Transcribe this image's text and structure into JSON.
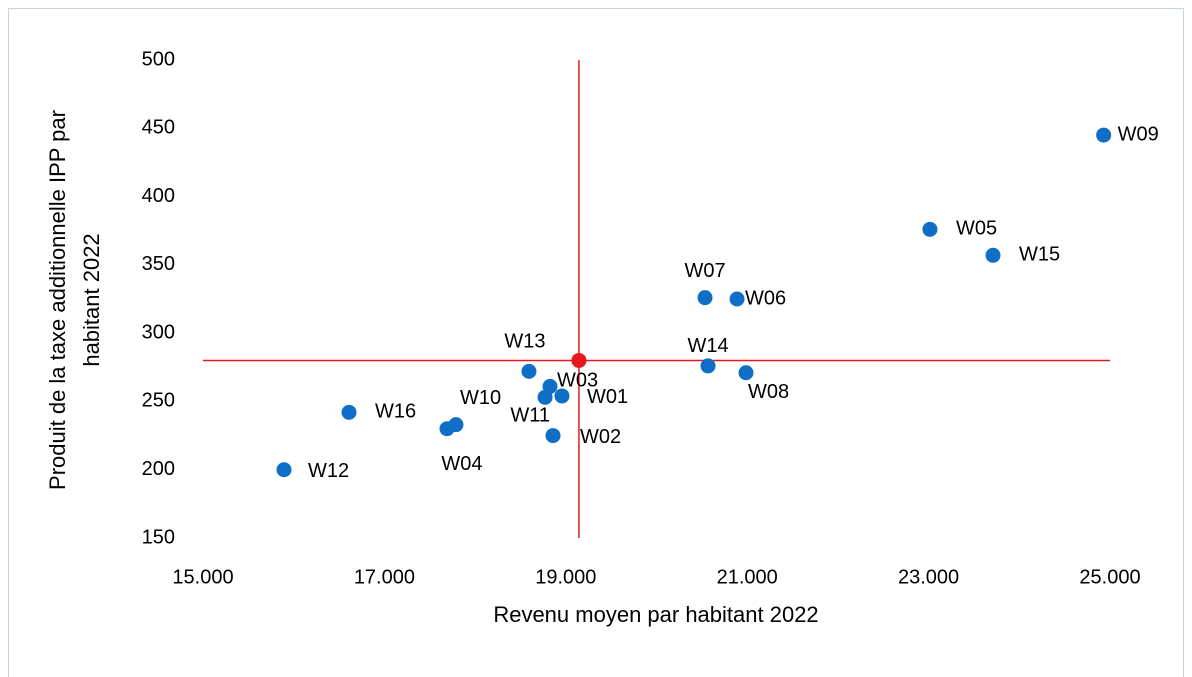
{
  "chart_data": {
    "type": "scatter",
    "x_label": "Revenu moyen par habitant 2022",
    "y_label": "Produit de la taxe additionnelle IPP par habitant 2022",
    "series": [
      {
        "color": "#0f6fc6",
        "labels": [
          "W09",
          "W05",
          "W15",
          "W07",
          "W06",
          "W14",
          "W08",
          "W13",
          "W03",
          "W11",
          "W01",
          "W02",
          "W10",
          "W04",
          "W16",
          "W12"
        ],
        "x": [
          24930,
          23015,
          23710,
          20535,
          20888,
          20568,
          20987,
          18594,
          18826,
          18771,
          18958,
          18859,
          17789,
          17690,
          16610,
          15893
        ],
        "values": [
          445,
          376,
          357,
          326,
          325,
          276,
          271,
          272,
          261,
          253,
          254,
          225,
          233,
          230,
          242,
          200
        ]
      }
    ],
    "mean_point": {
      "x": 19145,
      "y": 280,
      "color": "#e8191c"
    },
    "xlim": [
      15000,
      25000
    ],
    "xticks": [
      {
        "value": 15000,
        "label": "15.000"
      },
      {
        "value": 17000,
        "label": "17.000"
      },
      {
        "value": 19000,
        "label": "19.000"
      },
      {
        "value": 21000,
        "label": "21.000"
      },
      {
        "value": 23000,
        "label": "23.000"
      },
      {
        "value": 25000,
        "label": "25.000"
      }
    ],
    "ylim": [
      150,
      500
    ],
    "yticks": [
      150,
      200,
      250,
      300,
      350,
      400,
      450,
      500
    ]
  }
}
